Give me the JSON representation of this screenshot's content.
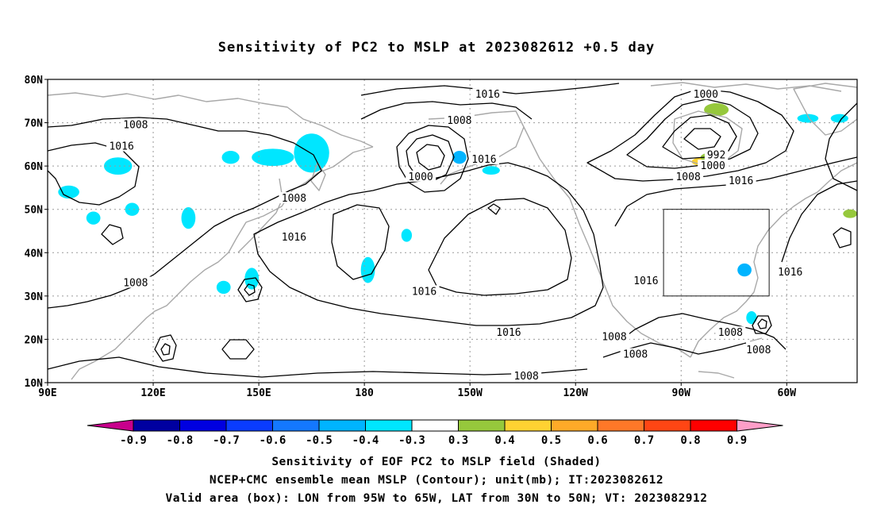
{
  "title": "Sensitivity of PC2 to MSLP at 2023082612 +0.5 day",
  "captions": {
    "line1": "Sensitivity of EOF PC2 to MSLP field (Shaded)",
    "line2": "NCEP+CMC ensemble mean MSLP (Contour); unit(mb); IT:2023082612",
    "line3": "Valid area (box): LON from 95W to 65W, LAT from 30N to 50N; VT: 2023082912"
  },
  "map": {
    "lon_range_deg_east": [
      90,
      320
    ],
    "lat_range": [
      10,
      80
    ],
    "lat_ticks": [
      {
        "lat": 80,
        "label": "80N"
      },
      {
        "lat": 70,
        "label": "70N"
      },
      {
        "lat": 60,
        "label": "60N"
      },
      {
        "lat": 50,
        "label": "50N"
      },
      {
        "lat": 40,
        "label": "40N"
      },
      {
        "lat": 30,
        "label": "30N"
      },
      {
        "lat": 20,
        "label": "20N"
      },
      {
        "lat": 10,
        "label": "10N"
      }
    ],
    "lon_ticks": [
      {
        "lon": 90,
        "label": "90E"
      },
      {
        "lon": 120,
        "label": "120E"
      },
      {
        "lon": 150,
        "label": "150E"
      },
      {
        "lon": 180,
        "label": "180"
      },
      {
        "lon": 210,
        "label": "150W"
      },
      {
        "lon": 240,
        "label": "120W"
      },
      {
        "lon": 270,
        "label": "90W"
      },
      {
        "lon": 300,
        "label": "60W"
      }
    ],
    "valid_box": {
      "lon_min": 265,
      "lon_max": 295,
      "lat_min": 30,
      "lat_max": 50
    },
    "contour_labels": [
      {
        "text": "1016",
        "lon": 215,
        "lat": 76.5
      },
      {
        "text": "1008",
        "lon": 115,
        "lat": 69.5
      },
      {
        "text": "1008",
        "lon": 207,
        "lat": 70.5
      },
      {
        "text": "1000",
        "lon": 277,
        "lat": 76.5
      },
      {
        "text": "1016",
        "lon": 111,
        "lat": 64.5
      },
      {
        "text": "992",
        "lon": 280,
        "lat": 62.5
      },
      {
        "text": "1016",
        "lon": 214,
        "lat": 61.5
      },
      {
        "text": "1000",
        "lon": 279,
        "lat": 60
      },
      {
        "text": "1000",
        "lon": 196,
        "lat": 57.5
      },
      {
        "text": "1008",
        "lon": 272,
        "lat": 57.5
      },
      {
        "text": "1008",
        "lon": 160,
        "lat": 52.5
      },
      {
        "text": "1016",
        "lon": 287,
        "lat": 56.5
      },
      {
        "text": "1016",
        "lon": 160,
        "lat": 43.5
      },
      {
        "text": "1008",
        "lon": 115,
        "lat": 33
      },
      {
        "text": "1016",
        "lon": 197,
        "lat": 31
      },
      {
        "text": "1016",
        "lon": 260,
        "lat": 33.5
      },
      {
        "text": "1016",
        "lon": 301,
        "lat": 35.5
      },
      {
        "text": "1016",
        "lon": 221,
        "lat": 21.5
      },
      {
        "text": "1008",
        "lon": 251,
        "lat": 20.5
      },
      {
        "text": "1008",
        "lon": 284,
        "lat": 21.5
      },
      {
        "text": "1008",
        "lon": 292,
        "lat": 17.5
      },
      {
        "text": "1008",
        "lon": 257,
        "lat": 16.5
      },
      {
        "text": "1008",
        "lon": 226,
        "lat": 11.5
      }
    ],
    "shading": [
      {
        "lon": 165,
        "lat": 63,
        "w": 10,
        "h": 9,
        "value": -0.4
      },
      {
        "lon": 154,
        "lat": 62,
        "w": 12,
        "h": 4,
        "value": -0.4
      },
      {
        "lon": 110,
        "lat": 60,
        "w": 8,
        "h": 4,
        "value": -0.4
      },
      {
        "lon": 142,
        "lat": 62,
        "w": 5,
        "h": 3,
        "value": -0.4
      },
      {
        "lon": 96,
        "lat": 54,
        "w": 6,
        "h": 3,
        "value": -0.4
      },
      {
        "lon": 103,
        "lat": 48,
        "w": 4,
        "h": 3,
        "value": -0.4
      },
      {
        "lon": 114,
        "lat": 50,
        "w": 4,
        "h": 3,
        "value": -0.4
      },
      {
        "lon": 130,
        "lat": 48,
        "w": 4,
        "h": 5,
        "value": -0.4
      },
      {
        "lon": 148,
        "lat": 34,
        "w": 4,
        "h": 5,
        "value": -0.4
      },
      {
        "lon": 140,
        "lat": 32,
        "w": 4,
        "h": 3,
        "value": -0.4
      },
      {
        "lon": 181,
        "lat": 36,
        "w": 4,
        "h": 6,
        "value": -0.4
      },
      {
        "lon": 192,
        "lat": 44,
        "w": 3,
        "h": 3,
        "value": -0.4
      },
      {
        "lon": 207,
        "lat": 62,
        "w": 4,
        "h": 3,
        "value": -0.5
      },
      {
        "lon": 216,
        "lat": 59,
        "w": 5,
        "h": 2,
        "value": -0.4
      },
      {
        "lon": 288,
        "lat": 36,
        "w": 4,
        "h": 3,
        "value": -0.5
      },
      {
        "lon": 290,
        "lat": 25,
        "w": 3,
        "h": 3,
        "value": -0.4
      },
      {
        "lon": 306,
        "lat": 71,
        "w": 6,
        "h": 2,
        "value": -0.4
      },
      {
        "lon": 315,
        "lat": 71,
        "w": 5,
        "h": 2,
        "value": -0.4
      },
      {
        "lon": 280,
        "lat": 73,
        "w": 7,
        "h": 3,
        "value": 0.3
      },
      {
        "lon": 276,
        "lat": 61,
        "w": 6,
        "h": 2,
        "value": 0.4
      },
      {
        "lon": 278,
        "lat": 62,
        "w": 5,
        "h": 2,
        "value": 0.3
      },
      {
        "lon": 318,
        "lat": 49,
        "w": 4,
        "h": 2,
        "value": 0.3
      }
    ]
  },
  "colorbar": {
    "labels": [
      "-0.9",
      "-0.8",
      "-0.7",
      "-0.6",
      "-0.5",
      "-0.4",
      "-0.3",
      "0.3",
      "0.4",
      "0.5",
      "0.6",
      "0.7",
      "0.8",
      "0.9"
    ],
    "colors": [
      "#0000a0",
      "#0000e0",
      "#0a3cff",
      "#1478ff",
      "#00b4ff",
      "#00e6ff",
      "#ffffff",
      "#96c83c",
      "#ffd232",
      "#ffaa28",
      "#ff7828",
      "#ff4614",
      "#ff0000"
    ],
    "low_end_color": "#c8008c",
    "high_end_color": "#ff9ec8"
  },
  "colors": {
    "contour": "#000000",
    "coastline": "#a8a8a8",
    "gridline": "#9a9a9a"
  }
}
